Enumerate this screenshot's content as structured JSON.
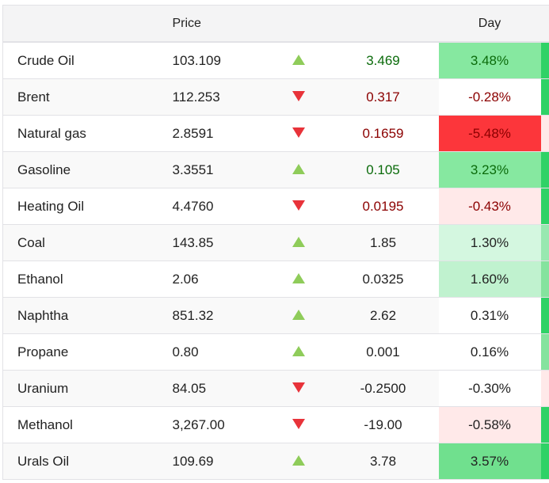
{
  "header": {
    "name": "",
    "price": "Price",
    "arrow": "",
    "change": "",
    "day": "Day"
  },
  "colors": {
    "up_arrow": "#8fcc5a",
    "down_arrow": "#e8333a",
    "positive_text": "#0b6b0b",
    "negative_text": "#8b0000"
  },
  "rows": [
    {
      "name": "Crude Oil",
      "price": "103.109",
      "direction": "up",
      "change": "3.469",
      "day": "3.48%",
      "tone": "pos",
      "day_bg": "#86e8a0",
      "edge": "#2fd266"
    },
    {
      "name": "Brent",
      "price": "112.253",
      "direction": "down",
      "change": "0.317",
      "day": "-0.28%",
      "tone": "neg",
      "day_bg": "#ffffff",
      "edge": "#2fd266"
    },
    {
      "name": "Natural gas",
      "price": "2.8591",
      "direction": "down",
      "change": "0.1659",
      "day": "-5.48%",
      "tone": "neg",
      "day_bg": "#fc363b",
      "edge": "#ffe9e9"
    },
    {
      "name": "Gasoline",
      "price": "3.3551",
      "direction": "up",
      "change": "0.105",
      "day": "3.23%",
      "tone": "pos",
      "day_bg": "#86e8a0",
      "edge": "#2fd266"
    },
    {
      "name": "Heating Oil",
      "price": "4.4760",
      "direction": "down",
      "change": "0.0195",
      "day": "-0.43%",
      "tone": "neg",
      "day_bg": "#ffe9e9",
      "edge": "#2fd266"
    },
    {
      "name": "Coal",
      "price": "143.85",
      "direction": "up",
      "change": "1.85",
      "day": "1.30%",
      "tone": "",
      "day_bg": "#d4f7e0",
      "edge": "#98e8b0"
    },
    {
      "name": "Ethanol",
      "price": "2.06",
      "direction": "up",
      "change": "0.0325",
      "day": "1.60%",
      "tone": "",
      "day_bg": "#c0f2cf",
      "edge": "#85e39e"
    },
    {
      "name": "Naphtha",
      "price": "851.32",
      "direction": "up",
      "change": "2.62",
      "day": "0.31%",
      "tone": "",
      "day_bg": "#ffffff",
      "edge": "#2fd266"
    },
    {
      "name": "Propane",
      "price": "0.80",
      "direction": "up",
      "change": "0.001",
      "day": "0.16%",
      "tone": "",
      "day_bg": "#ffffff",
      "edge": "#85e39e"
    },
    {
      "name": "Uranium",
      "price": "84.05",
      "direction": "down",
      "change": "-0.2500",
      "day": "-0.30%",
      "tone": "",
      "day_bg": "#ffffff",
      "edge": "#ffe9e9"
    },
    {
      "name": "Methanol",
      "price": "3,267.00",
      "direction": "down",
      "change": "-19.00",
      "day": "-0.58%",
      "tone": "",
      "day_bg": "#ffe9e9",
      "edge": "#2fd266"
    },
    {
      "name": "Urals Oil",
      "price": "109.69",
      "direction": "up",
      "change": "3.78",
      "day": "3.57%",
      "tone": "",
      "day_bg": "#70e08e",
      "edge": "#2fd266"
    }
  ]
}
